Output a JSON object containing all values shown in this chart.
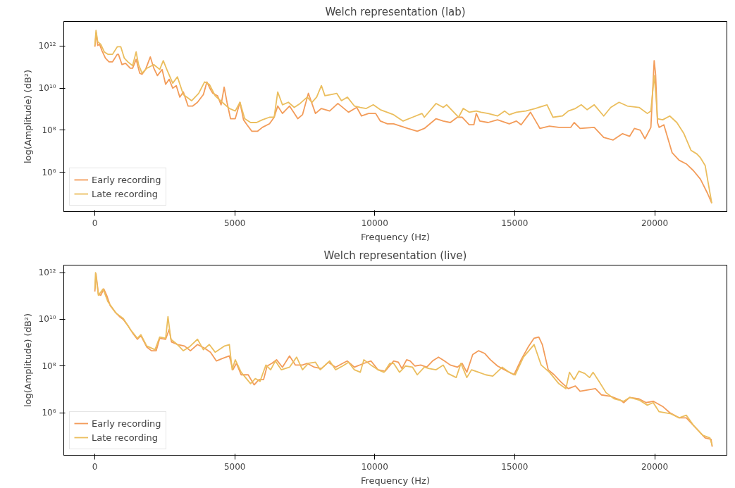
{
  "chart_data": [
    {
      "type": "line",
      "title": "Welch representation (lab)",
      "xlabel": "Frequency (Hz)",
      "ylabel": "log(Amplitude) (dB²)",
      "log": true,
      "grid": false,
      "legend": "bottom left",
      "xlim": [
        -1110,
        22580
      ],
      "ylim": [
        13500.0,
        14500000000000.0
      ],
      "xticks": [
        0,
        5000,
        10000,
        15000,
        20000
      ],
      "yticks": [
        {
          "value": 1000000.0,
          "label": "10⁶"
        },
        {
          "value": 100000000.0,
          "label": "10⁸"
        },
        {
          "value": 10000000000.0,
          "label": "10¹⁰"
        },
        {
          "value": 1000000000000.0,
          "label": "10¹²"
        }
      ],
      "series": [
        {
          "name": "Early recording",
          "color": "#f39c5a",
          "x": [
            0,
            51,
            101,
            169,
            253,
            379,
            506,
            632,
            801,
            843,
            970,
            1096,
            1265,
            1349,
            1475,
            1602,
            1686,
            1812,
            1981,
            2108,
            2234,
            2403,
            2529,
            2655,
            2782,
            2908,
            3035,
            3161,
            3330,
            3498,
            3667,
            3878,
            4004,
            4131,
            4215,
            4384,
            4510,
            4620,
            4721,
            4847,
            5016,
            5184,
            5311,
            5437,
            5606,
            5817,
            5985,
            6238,
            6407,
            6533,
            6702,
            6955,
            7250,
            7418,
            7629,
            7882,
            8093,
            8388,
            8683,
            9062,
            9357,
            9526,
            9779,
            10032,
            10200,
            10453,
            10675,
            10928,
            11181,
            11518,
            11771,
            12192,
            12445,
            12698,
            12951,
            13120,
            13373,
            13541,
            13626,
            13752,
            14047,
            14385,
            14806,
            15059,
            15228,
            15565,
            15902,
            16239,
            16576,
            16998,
            17124,
            17335,
            17841,
            18179,
            18516,
            18853,
            19106,
            19275,
            19484,
            19653,
            19864,
            19982,
            20033,
            20100,
            20159,
            20328,
            20623,
            20876,
            21129,
            21382,
            21634,
            21887,
            22039
          ],
          "values": [
            910000000000.0,
            4200000000000.0,
            1050000000000.0,
            1200000000000.0,
            600000000000.0,
            260000000000.0,
            175000000000.0,
            175000000000.0,
            400000000000.0,
            400000000000.0,
            130000000000.0,
            150000000000.0,
            87000000000.0,
            87000000000.0,
            230000000000.0,
            51000000000.0,
            45000000000.0,
            76000000000.0,
            300000000000.0,
            87000000000.0,
            39000000000.0,
            76000000000.0,
            15000000000.0,
            26000000000.0,
            9800000000.0,
            13000000000.0,
            3700000000.0,
            6500000000.0,
            1400000000.0,
            1400000000.0,
            2100000000.0,
            4900000000.0,
            19500000000.0,
            8500000000.0,
            5600000000.0,
            4300000000.0,
            1600000000.0,
            11000000000.0,
            2100000000.0,
            350000000.0,
            350000000.0,
            2100000000.0,
            310000000.0,
            180000000.0,
            89000000.0,
            89000000.0,
            135000000.0,
            200000000.0,
            410000000.0,
            1400000000.0,
            620000000.0,
            1400000000.0,
            350000000.0,
            540000000.0,
            5600000000.0,
            620000000.0,
            1070000000.0,
            810000000.0,
            1850000000.0,
            710000000.0,
            1200000000.0,
            470000000.0,
            620000000.0,
            620000000.0,
            270000000.0,
            200000000.0,
            200000000.0,
            155000000.0,
            120000000.0,
            89000000.0,
            120000000.0,
            350000000.0,
            270000000.0,
            230000000.0,
            410000000.0,
            410000000.0,
            180000000.0,
            180000000.0,
            620000000.0,
            270000000.0,
            230000000.0,
            310000000.0,
            200000000.0,
            270000000.0,
            180000000.0,
            710000000.0,
            120000000.0,
            155000000.0,
            135000000.0,
            135000000.0,
            230000000.0,
            120000000.0,
            135000000.0,
            45000000.0,
            34000000.0,
            68000000.0,
            51000000.0,
            120000000.0,
            100000000.0,
            39000000.0,
            135000000.0,
            200000000000.0,
            45000000000.0,
            230000000.0,
            135000000.0,
            180000000.0,
            8500000.0,
            3700000.0,
            2500000.0,
            1200000.0,
            470000.0,
            100000.0,
            34000.0
          ]
        },
        {
          "name": "Late recording",
          "color": "#ebbe5e",
          "x": [
            0,
            42,
            101,
            211,
            337,
            464,
            632,
            801,
            927,
            1054,
            1180,
            1349,
            1475,
            1560,
            1686,
            1855,
            2108,
            2318,
            2445,
            2571,
            2782,
            2950,
            3161,
            3456,
            3709,
            3920,
            4089,
            4299,
            4552,
            4805,
            5016,
            5184,
            5353,
            5564,
            5775,
            5985,
            6238,
            6407,
            6533,
            6702,
            6913,
            7124,
            7334,
            7587,
            7756,
            7924,
            8093,
            8220,
            8430,
            8641,
            8810,
            9020,
            9273,
            9484,
            9695,
            9947,
            10200,
            10675,
            11012,
            11350,
            11687,
            11771,
            12192,
            12445,
            12571,
            12782,
            12993,
            13162,
            13373,
            13626,
            13794,
            14047,
            14385,
            14638,
            14806,
            15059,
            15396,
            15734,
            16155,
            16366,
            16703,
            16914,
            17167,
            17377,
            17588,
            17841,
            18179,
            18432,
            18727,
            19022,
            19443,
            19737,
            19864,
            19982,
            20049,
            20100,
            20286,
            20539,
            20792,
            21045,
            21297,
            21508,
            21634,
            21803,
            21929,
            22039
          ],
          "values": [
            1050000000000.0,
            5500000000000.0,
            1600000000000.0,
            1200000000000.0,
            520000000000.0,
            400000000000.0,
            400000000000.0,
            910000000000.0,
            910000000000.0,
            260000000000.0,
            175000000000.0,
            115000000000.0,
            520000000000.0,
            130000000000.0,
            51000000000.0,
            87000000000.0,
            130000000000.0,
            76000000000.0,
            200000000000.0,
            76000000000.0,
            17000000000.0,
            34000000000.0,
            4900000000.0,
            2500000000.0,
            5600000000.0,
            19500000000.0,
            15000000000.0,
            4300000000.0,
            2100000000.0,
            1070000000.0,
            810000000.0,
            2100000000.0,
            350000000.0,
            230000000.0,
            230000000.0,
            310000000.0,
            410000000.0,
            410000000.0,
            6500000000.0,
            1600000000.0,
            2100000000.0,
            1200000000.0,
            1850000000.0,
            3700000000.0,
            2100000000.0,
            3700000000.0,
            13000000000.0,
            4300000000.0,
            4900000000.0,
            5600000000.0,
            2500000000.0,
            3700000000.0,
            1400000000.0,
            1200000000.0,
            1070000000.0,
            1600000000.0,
            930000000.0,
            540000000.0,
            270000000.0,
            410000000.0,
            620000000.0,
            410000000.0,
            1850000000.0,
            1200000000.0,
            1600000000.0,
            810000000.0,
            410000000.0,
            1070000000.0,
            710000000.0,
            810000000.0,
            710000000.0,
            620000000.0,
            470000000.0,
            810000000.0,
            540000000.0,
            710000000.0,
            810000000.0,
            1070000000.0,
            1600000000.0,
            410000000.0,
            470000000.0,
            810000000.0,
            1070000000.0,
            1600000000.0,
            930000000.0,
            1600000000.0,
            470000000.0,
            1200000000.0,
            2100000000.0,
            1400000000.0,
            1200000000.0,
            620000000.0,
            810000000.0,
            39000000000.0,
            3700000000.0,
            350000000.0,
            310000000.0,
            470000000.0,
            230000000.0,
            68000000.0,
            11000000.0,
            7400000.0,
            4900000.0,
            2100000.0,
            230000.0,
            34000.0
          ]
        }
      ]
    },
    {
      "type": "line",
      "title": "Welch representation (live)",
      "xlabel": "Frequency (Hz)",
      "ylabel": "log(Amplitude) (dB²)",
      "log": true,
      "grid": false,
      "legend": "bottom left",
      "xlim": [
        -1110,
        22580
      ],
      "ylim": [
        15000.0,
        2100000000000.0
      ],
      "xticks": [
        0,
        5000,
        10000,
        15000,
        20000
      ],
      "yticks": [
        {
          "value": 1000000.0,
          "label": "10⁶"
        },
        {
          "value": 100000000.0,
          "label": "10⁸"
        },
        {
          "value": 10000000000.0,
          "label": "10¹⁰"
        },
        {
          "value": 1000000000000.0,
          "label": "10¹²"
        }
      ],
      "series": [
        {
          "name": "Early recording",
          "color": "#f39c5a",
          "x": [
            0,
            42,
            127,
            211,
            320,
            422,
            548,
            717,
            885,
            1012,
            1180,
            1349,
            1518,
            1644,
            1855,
            2023,
            2192,
            2318,
            2529,
            2655,
            2740,
            2950,
            3203,
            3414,
            3667,
            3920,
            4131,
            4341,
            4552,
            4805,
            4931,
            5058,
            5227,
            5479,
            5690,
            5859,
            6028,
            6154,
            6323,
            6491,
            6702,
            6955,
            7166,
            7418,
            7587,
            7840,
            8093,
            8346,
            8599,
            8852,
            9020,
            9273,
            9610,
            9863,
            10116,
            10369,
            10675,
            10843,
            10970,
            11139,
            11265,
            11434,
            11645,
            11856,
            12066,
            12277,
            12488,
            12698,
            12951,
            13120,
            13289,
            13499,
            13710,
            13921,
            14132,
            14385,
            14638,
            14975,
            15228,
            15481,
            15691,
            15860,
            15986,
            16197,
            16408,
            16661,
            16914,
            17167,
            17335,
            17588,
            17883,
            18094,
            18432,
            18769,
            18895,
            19106,
            19443,
            19695,
            19948,
            20285,
            20539,
            20876,
            21129,
            21297,
            21550,
            21803,
            22014,
            22056
          ],
          "values": [
            155000000000.0,
            890000000000.0,
            120000000000.0,
            107000000000.0,
            200000000000.0,
            107000000000.0,
            39000000000.0,
            21000000000.0,
            13000000000.0,
            10000000000.0,
            5400000000.0,
            2600000000.0,
            1400000000.0,
            2000000000.0,
            650000000.0,
            450000000.0,
            450000000.0,
            1550000000.0,
            1400000000.0,
            3700000000.0,
            1070000000.0,
            830000000.0,
            720000000.0,
            450000000.0,
            830000000.0,
            580000000.0,
            390000000.0,
            165000000.0,
            210000000.0,
            270000000.0,
            69000000.0,
            130000000.0,
            42000000.0,
            42000000.0,
            15500000.0,
            26000000.0,
            26000000.0,
            100000000.0,
            130000000.0,
            185000000.0,
            89000000.0,
            270000000.0,
            110000000.0,
            110000000.0,
            130000000.0,
            89000000.0,
            78000000.0,
            145000000.0,
            89000000.0,
            130000000.0,
            165000000.0,
            89000000.0,
            130000000.0,
            165000000.0,
            69000000.0,
            60000000.0,
            165000000.0,
            145000000.0,
            78000000.0,
            185000000.0,
            165000000.0,
            100000000.0,
            110000000.0,
            89000000.0,
            165000000.0,
            240000000.0,
            165000000.0,
            110000000.0,
            89000000.0,
            130000000.0,
            54000000.0,
            310000000.0,
            450000000.0,
            350000000.0,
            185000000.0,
            100000000.0,
            69000000.0,
            42000000.0,
            185000000.0,
            650000000.0,
            1550000000.0,
            1750000000.0,
            830000000.0,
            69000000.0,
            42000000.0,
            20000000.0,
            10700000.0,
            14000000.0,
            8300000.0,
            9300000.0,
            10700000.0,
            5800000.0,
            5000000.0,
            3500000.0,
            2700000.0,
            4500000.0,
            3900000.0,
            2700000.0,
            3100000.0,
            1850000.0,
            1000000.0,
            600000.0,
            600000.0,
            370000.0,
            175000.0,
            83000.0,
            72000.0,
            35000.0
          ]
        },
        {
          "name": "Late recording",
          "color": "#ebbe5e",
          "x": [
            0,
            25,
            127,
            295,
            464,
            759,
            1012,
            1265,
            1518,
            1644,
            1855,
            2150,
            2318,
            2529,
            2613,
            2714,
            2950,
            3161,
            3372,
            3667,
            3878,
            4089,
            4299,
            4636,
            4805,
            4906,
            5016,
            5227,
            5564,
            5733,
            5901,
            6112,
            6281,
            6449,
            6660,
            6955,
            7208,
            7418,
            7629,
            7882,
            8051,
            8388,
            8599,
            8852,
            9062,
            9273,
            9484,
            9610,
            9863,
            10116,
            10327,
            10538,
            10675,
            10886,
            11097,
            11350,
            11518,
            11771,
            11940,
            12192,
            12445,
            12614,
            12909,
            13078,
            13289,
            13457,
            13710,
            13963,
            14216,
            14553,
            14806,
            15017,
            15312,
            15691,
            15944,
            16239,
            16576,
            16829,
            16956,
            17124,
            17293,
            17503,
            17672,
            17799,
            18010,
            18263,
            18558,
            18895,
            19106,
            19443,
            19737,
            19948,
            20159,
            20581,
            20876,
            21129,
            21382,
            21719,
            21972,
            22056
          ],
          "values": [
            200000000000.0,
            1000000000000.0,
            107000000000.0,
            200000000000.0,
            58000000000.0,
            18500000000.0,
            11000000000.0,
            3700000000.0,
            1550000000.0,
            2200000000.0,
            720000000.0,
            500000000.0,
            1750000000.0,
            1550000000.0,
            13000000000.0,
            1400000000.0,
            830000000.0,
            450000000.0,
            650000000.0,
            1400000000.0,
            500000000.0,
            830000000.0,
            390000000.0,
            720000000.0,
            830000000.0,
            69000000.0,
            185000000.0,
            54000000.0,
            17500000.0,
            29000000.0,
            22000000.0,
            110000000.0,
            69000000.0,
            165000000.0,
            69000000.0,
            89000000.0,
            240000000.0,
            69000000.0,
            130000000.0,
            145000000.0,
            69000000.0,
            165000000.0,
            69000000.0,
            100000000.0,
            145000000.0,
            69000000.0,
            54000000.0,
            185000000.0,
            110000000.0,
            69000000.0,
            54000000.0,
            130000000.0,
            130000000.0,
            54000000.0,
            100000000.0,
            89000000.0,
            42000000.0,
            89000000.0,
            78000000.0,
            69000000.0,
            110000000.0,
            48000000.0,
            32000000.0,
            130000000.0,
            32000000.0,
            69000000.0,
            54000000.0,
            42000000.0,
            37000000.0,
            89000000.0,
            54000000.0,
            42000000.0,
            240000000.0,
            830000000.0,
            110000000.0,
            54000000.0,
            17500000.0,
            10700000.0,
            54000000.0,
            26000000.0,
            60000000.0,
            48000000.0,
            32000000.0,
            54000000.0,
            22000000.0,
            7200000.0,
            3900000.0,
            3100000.0,
            4500000.0,
            3500000.0,
            2100000.0,
            2700000.0,
            1100000.0,
            890000.0,
            600000.0,
            780000.0,
            290000.0,
            107000.0,
            83000.0,
            39000.0
          ]
        }
      ]
    }
  ]
}
